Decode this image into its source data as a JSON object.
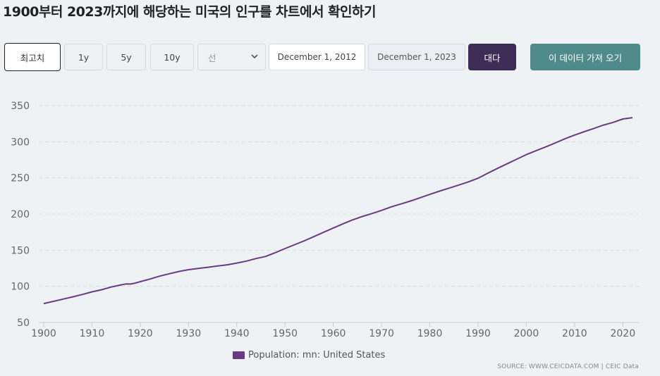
{
  "page_title": "1900부터 2023까지에 해당하는 미국의 인구를 차트에서 확인하기",
  "controls": {
    "max_label": "최고치",
    "y1_label": "1y",
    "y5_label": "5y",
    "y10_label": "10y",
    "chart_type_value": "선",
    "start_date": "December 1, 2012",
    "end_date": "December 1, 2023",
    "go_label": "대다",
    "fetch_label": "이 데이터 가져 오기"
  },
  "colors": {
    "line": "#6a3a83",
    "go_button": "#3d2c55",
    "fetch_button": "#4e8b8a"
  },
  "legend": {
    "label": "Population: mn: United States"
  },
  "source": "SOURCE: WWW.CEICDATA.COM | CEIC Data",
  "chart_data": {
    "type": "line",
    "xlabel": "",
    "ylabel": "",
    "xlim": [
      1900,
      2022
    ],
    "ylim": [
      50,
      350
    ],
    "x_ticks": [
      1900,
      1910,
      1920,
      1930,
      1940,
      1950,
      1960,
      1970,
      1980,
      1990,
      2000,
      2010,
      2020
    ],
    "y_ticks": [
      50,
      100,
      150,
      200,
      250,
      300,
      350
    ],
    "grid": true,
    "legend_position": "bottom-center",
    "series": [
      {
        "name": "Population: mn: United States",
        "x": [
          1900,
          1902,
          1904,
          1906,
          1908,
          1910,
          1912,
          1914,
          1916,
          1917,
          1918,
          1919,
          1920,
          1922,
          1924,
          1926,
          1928,
          1930,
          1932,
          1934,
          1936,
          1938,
          1940,
          1942,
          1944,
          1946,
          1947,
          1948,
          1950,
          1952,
          1954,
          1956,
          1958,
          1960,
          1962,
          1964,
          1966,
          1968,
          1970,
          1972,
          1974,
          1976,
          1978,
          1980,
          1982,
          1984,
          1986,
          1988,
          1990,
          1992,
          1994,
          1996,
          1998,
          2000,
          2002,
          2004,
          2006,
          2008,
          2010,
          2012,
          2014,
          2016,
          2018,
          2020,
          2022
        ],
        "values": [
          76.2,
          79.2,
          82.3,
          85.5,
          88.8,
          92.4,
          95.3,
          99.1,
          102.0,
          103.3,
          103.2,
          104.5,
          106.5,
          110.1,
          114.1,
          117.4,
          120.5,
          123.1,
          124.8,
          126.4,
          128.1,
          129.8,
          132.2,
          134.9,
          138.4,
          141.4,
          144.1,
          146.6,
          152.3,
          157.6,
          163.0,
          168.9,
          174.9,
          180.7,
          186.5,
          191.9,
          196.6,
          200.7,
          205.1,
          209.9,
          213.9,
          218.0,
          222.6,
          227.2,
          231.7,
          235.8,
          240.1,
          244.5,
          249.6,
          256.5,
          263.1,
          269.4,
          275.9,
          282.2,
          287.6,
          292.8,
          298.4,
          304.1,
          309.3,
          314.0,
          318.4,
          323.1,
          326.8,
          331.5,
          333.3
        ]
      }
    ]
  }
}
